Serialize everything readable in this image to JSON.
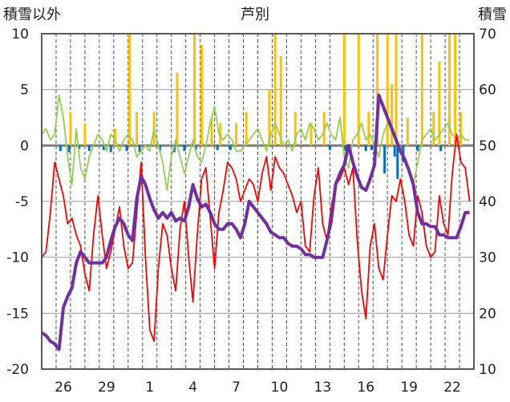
{
  "chart_data": {
    "type": "line",
    "title": "芦別",
    "y_left_label": "積雪以外",
    "y_right_label": "積雪",
    "y_left_range": [
      -20,
      10
    ],
    "y_left_ticks": [
      "10",
      "5",
      "0",
      "-5",
      "-10",
      "-15",
      "-20"
    ],
    "y_right_range": [
      10,
      70
    ],
    "y_right_ticks": [
      "70",
      "60",
      "50",
      "40",
      "30",
      "20",
      "10"
    ],
    "x_range": [
      24,
      54
    ],
    "x_tick_values": [
      25.5,
      28.5,
      31.5,
      34.5,
      37.5,
      40.5,
      43.5,
      46.5,
      49.5,
      52.5
    ],
    "x_tick_labels": [
      "26",
      "29",
      "1",
      "4",
      "7",
      "10",
      "13",
      "16",
      "19",
      "22"
    ],
    "grid": true,
    "legend": "none",
    "colors": {
      "temperature": "#ff0000",
      "snow_depth": "#7030a0",
      "wind": "#92d050",
      "precipitation": "#ffc000",
      "precip_negative": "#0070c0",
      "grid": "#9a9a9a",
      "frame": "#595959"
    },
    "series": [
      {
        "axis": "left",
        "kind": "line",
        "color": "#ff0000",
        "x": [
          24.0,
          24.3,
          24.6,
          24.9,
          25.2,
          25.5,
          25.8,
          26.1,
          26.4,
          26.7,
          27.0,
          27.3,
          27.6,
          27.9,
          28.2,
          28.5,
          28.8,
          29.1,
          29.4,
          29.7,
          30.0,
          30.3,
          30.6,
          30.9,
          31.2,
          31.5,
          31.8,
          32.1,
          32.4,
          32.7,
          33.0,
          33.3,
          33.6,
          33.9,
          34.2,
          34.5,
          34.8,
          35.1,
          35.4,
          35.7,
          36.0,
          36.3,
          36.6,
          36.9,
          37.2,
          37.5,
          37.8,
          38.1,
          38.4,
          38.7,
          39.0,
          39.3,
          39.6,
          39.9,
          40.2,
          40.5,
          40.8,
          41.1,
          41.4,
          41.7,
          42.0,
          42.3,
          42.6,
          42.9,
          43.2,
          43.5,
          43.8,
          44.1,
          44.4,
          44.7,
          45.0,
          45.3,
          45.6,
          45.9,
          46.2,
          46.5,
          46.8,
          47.1,
          47.4,
          47.7,
          48.0,
          48.3,
          48.6,
          48.9,
          49.2,
          49.5,
          49.8,
          50.1,
          50.4,
          50.7,
          51.0,
          51.3,
          51.6,
          51.9,
          52.2,
          52.5,
          52.8,
          53.1,
          53.4,
          53.7
        ],
        "y": [
          -10,
          -9.5,
          -6,
          -1.5,
          -3,
          -4.5,
          -7,
          -6.5,
          -8,
          -9,
          -11.5,
          -13,
          -8,
          -4.5,
          -8,
          -11,
          -9.5,
          -7.5,
          -5.5,
          -9,
          -11,
          -10.5,
          -6,
          -1.5,
          -10,
          -16.5,
          -17.5,
          -11,
          -7,
          -8,
          -11,
          -13,
          -7.5,
          -5,
          -10,
          -14,
          -8,
          -3,
          -2,
          -6.5,
          -11,
          -6,
          -4,
          -1.5,
          -2,
          -3,
          -5,
          -4,
          -3,
          -3.5,
          -5,
          -2.5,
          -1,
          -4,
          -1,
          -2,
          -2.5,
          -3.5,
          -4.5,
          -6,
          -5,
          -9,
          -9.5,
          -4.5,
          -2,
          -7,
          -8.5,
          -5.5,
          -3.5,
          -3,
          -2,
          -3.5,
          -2,
          -8.5,
          -13,
          -15.5,
          -9,
          -7,
          -11,
          -12,
          -8,
          -4.5,
          -5,
          -3,
          -5,
          -8,
          -9,
          -4.5,
          -6,
          -9,
          -10,
          -9.5,
          -4.5,
          -7,
          -8,
          -2.5,
          1,
          -1.5,
          -2,
          -5
        ]
      },
      {
        "axis": "right",
        "kind": "line",
        "color": "#7030a0",
        "x": [
          24.0,
          24.3,
          24.6,
          24.9,
          25.2,
          25.5,
          25.8,
          26.1,
          26.4,
          26.7,
          27.0,
          27.3,
          27.6,
          27.9,
          28.2,
          28.5,
          28.8,
          29.1,
          29.4,
          29.7,
          30.0,
          30.3,
          30.6,
          30.9,
          31.2,
          31.5,
          31.8,
          32.1,
          32.4,
          32.7,
          33.0,
          33.3,
          33.6,
          33.9,
          34.2,
          34.5,
          34.8,
          35.1,
          35.4,
          35.7,
          36.0,
          36.3,
          36.6,
          36.9,
          37.2,
          37.5,
          37.8,
          38.1,
          38.4,
          38.7,
          39.0,
          39.3,
          39.6,
          39.9,
          40.2,
          40.5,
          40.8,
          41.1,
          41.4,
          41.7,
          42.0,
          42.3,
          42.6,
          42.9,
          43.2,
          43.5,
          43.8,
          44.1,
          44.4,
          44.7,
          45.0,
          45.3,
          45.6,
          45.9,
          46.2,
          46.5,
          46.8,
          47.1,
          47.4,
          47.7,
          48.0,
          48.3,
          48.6,
          48.9,
          49.2,
          49.5,
          49.8,
          50.1,
          50.4,
          50.7,
          51.0,
          51.3,
          51.6,
          51.9,
          52.2,
          52.5,
          52.8,
          53.1,
          53.4,
          53.7
        ],
        "y": [
          16.5,
          16,
          15,
          14.5,
          13.5,
          21,
          23,
          24.5,
          29,
          31,
          30,
          29,
          29,
          29,
          29,
          30,
          33,
          35.5,
          37,
          36,
          34,
          33,
          40.5,
          44.5,
          43,
          40.5,
          38.5,
          37,
          38,
          37,
          38,
          36.5,
          37,
          36.5,
          39,
          43,
          40.5,
          39,
          39.5,
          38,
          36,
          35,
          35,
          36,
          36,
          35,
          33.5,
          36,
          40,
          39,
          38,
          37,
          36,
          34.5,
          34,
          33.5,
          33.5,
          32.5,
          32,
          32,
          31.5,
          30.5,
          30.5,
          30,
          30,
          30,
          33,
          36.5,
          43,
          45,
          46.5,
          50,
          47,
          44.5,
          42.5,
          42,
          44,
          46.5,
          59,
          57,
          55,
          53,
          51,
          49,
          47.5,
          45.5,
          43,
          38,
          36,
          36,
          35.5,
          35.5,
          34,
          34,
          33.5,
          33.5,
          33.5,
          35.5,
          38,
          38
        ]
      },
      {
        "axis": "left",
        "kind": "line",
        "color": "#92d050",
        "x": [
          24.0,
          24.3,
          24.6,
          24.9,
          25.2,
          25.5,
          25.8,
          26.1,
          26.4,
          26.7,
          27.0,
          27.3,
          27.6,
          27.9,
          28.2,
          28.5,
          28.8,
          29.1,
          29.4,
          29.7,
          30.0,
          30.3,
          30.6,
          30.9,
          31.2,
          31.5,
          31.8,
          32.1,
          32.4,
          32.7,
          33.0,
          33.3,
          33.6,
          33.9,
          34.2,
          34.5,
          34.8,
          35.1,
          35.4,
          35.7,
          36.0,
          36.3,
          36.6,
          36.9,
          37.2,
          37.5,
          37.8,
          38.1,
          38.4,
          38.7,
          39.0,
          39.3,
          39.6,
          39.9,
          40.2,
          40.5,
          40.8,
          41.1,
          41.4,
          41.7,
          42.0,
          42.3,
          42.6,
          42.9,
          43.2,
          43.5,
          43.8,
          44.1,
          44.4,
          44.7,
          45.0,
          45.3,
          45.6,
          45.9,
          46.2,
          46.5,
          46.8,
          47.1,
          47.4,
          47.7,
          48.0,
          48.3,
          48.6,
          48.9,
          49.2,
          49.5,
          49.8,
          50.1,
          50.4,
          50.7,
          51.0,
          51.3,
          51.6,
          51.9,
          52.2,
          52.5,
          52.8,
          53.1,
          53.4,
          53.7
        ],
        "y": [
          1,
          1.5,
          0.5,
          1,
          4.5,
          2.5,
          -1,
          -3.5,
          1.5,
          -2,
          -3,
          -1,
          0,
          1,
          0.5,
          -0.5,
          1,
          0.5,
          -0.5,
          0.5,
          1,
          0.5,
          -1,
          -0.5,
          0,
          -0.5,
          1.5,
          0,
          -1.5,
          -4,
          -1,
          0.5,
          -1,
          -2.5,
          -1,
          0.5,
          -1,
          -1.5,
          0,
          2,
          3.5,
          1,
          0.5,
          1,
          0.5,
          -0.5,
          -0.5,
          0,
          0.5,
          1,
          1.5,
          0.5,
          -0.5,
          1,
          2,
          1,
          0,
          0.5,
          -0.5,
          1,
          1.5,
          0.5,
          2,
          1.5,
          0.5,
          1,
          2,
          1,
          0.5,
          2.5,
          -1,
          -2,
          0.5,
          1,
          2,
          0.5,
          1,
          0,
          -1,
          1,
          2,
          1.5,
          0.5,
          -0.5,
          -1,
          -2,
          -3.5,
          -1.5,
          0.5,
          1,
          1.5,
          0.5,
          1,
          1.5,
          2,
          1,
          0.5,
          1,
          0.5,
          0.5
        ]
      },
      {
        "axis": "left",
        "kind": "bars",
        "color": "#ffc000",
        "x": [
          26.0,
          27.0,
          29.1,
          30.1,
          30.6,
          31.8,
          33.4,
          34.6,
          35.1,
          35.8,
          36.4,
          37.5,
          38.2,
          39.8,
          40.2,
          40.6,
          41.6,
          42.7,
          43.6,
          45.0,
          46.0,
          46.7,
          47.3,
          48.0,
          48.3,
          48.6,
          49.4,
          50.4,
          51.2,
          51.6,
          52.3,
          52.7,
          53.1
        ],
        "y": [
          3,
          2,
          1.5,
          10,
          3,
          3,
          6.5,
          10,
          9,
          2.5,
          2,
          2,
          3,
          5,
          10,
          8,
          3,
          2,
          3,
          10,
          10,
          3,
          10,
          10,
          5.5,
          10,
          2.5,
          10,
          3,
          7.5,
          10,
          10,
          3
        ]
      },
      {
        "axis": "left",
        "kind": "bars",
        "color": "#0070c0",
        "x": [
          25.3,
          25.9,
          26.6,
          27.3,
          28.3,
          28.8,
          29.9,
          30.8,
          32.2,
          33.2,
          33.9,
          34.7,
          36.2,
          37.1,
          44.0,
          45.1,
          46.5,
          46.9,
          47.8,
          48.5,
          48.7,
          49.1,
          50.1,
          51.7
        ],
        "y": [
          -0.5,
          -0.6,
          -0.3,
          -0.5,
          -0.4,
          -0.6,
          -0.5,
          -0.6,
          -0.5,
          -0.6,
          -0.5,
          -0.4,
          -0.4,
          -0.4,
          -0.4,
          -0.5,
          -0.5,
          -0.4,
          -2.5,
          -1,
          -3,
          -1.5,
          -0.5,
          -0.5
        ]
      }
    ]
  }
}
